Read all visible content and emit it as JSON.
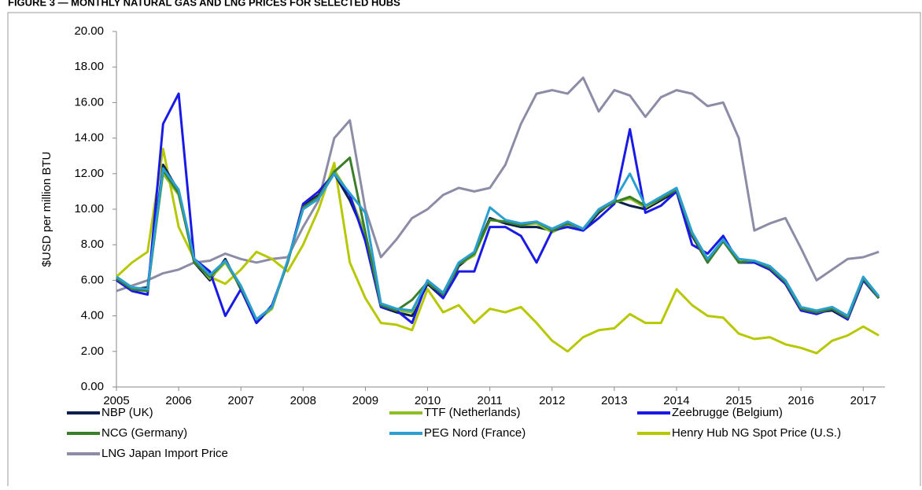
{
  "chart_data": {
    "type": "line",
    "title": "FIGURE 3 — MONTHLY NATURAL GAS AND LNG PRICES FOR SELECTED HUBS",
    "y_label": "$USD per million BTU",
    "xlim": [
      2005,
      2017.35
    ],
    "xticks": [
      2005,
      2006,
      2007,
      2008,
      2009,
      2010,
      2011,
      2012,
      2013,
      2014,
      2015,
      2016,
      2017
    ],
    "ylim": [
      0,
      20
    ],
    "yticks": [
      {
        "value": 0,
        "label": "0.00"
      },
      {
        "value": 2,
        "label": "2.00"
      },
      {
        "value": 4,
        "label": "4.00"
      },
      {
        "value": 6,
        "label": "6.00"
      },
      {
        "value": 8,
        "label": "8.00"
      },
      {
        "value": 10,
        "label": "10.00"
      },
      {
        "value": 12,
        "label": "12.00"
      },
      {
        "value": 14,
        "label": "14.00"
      },
      {
        "value": 16,
        "label": "16.00"
      },
      {
        "value": 18,
        "label": "18.00"
      },
      {
        "value": 20,
        "label": "20.00"
      }
    ],
    "x": [
      2005,
      2005.25,
      2005.5,
      2005.75,
      2006,
      2006.25,
      2006.5,
      2006.75,
      2007,
      2007.25,
      2007.5,
      2007.75,
      2008,
      2008.25,
      2008.5,
      2008.75,
      2009,
      2009.25,
      2009.5,
      2009.75,
      2010,
      2010.25,
      2010.5,
      2010.75,
      2011,
      2011.25,
      2011.5,
      2011.75,
      2012,
      2012.25,
      2012.5,
      2012.75,
      2013,
      2013.25,
      2013.5,
      2013.75,
      2014,
      2014.25,
      2014.5,
      2014.75,
      2015,
      2015.25,
      2015.5,
      2015.75,
      2016,
      2016.25,
      2016.5,
      2016.75,
      2017,
      2017.25
    ],
    "legend": "bottom",
    "series": [
      {
        "name": "NBP (UK)",
        "color": "#0b1f4d",
        "values": [
          6.1,
          5.5,
          5.6,
          12.5,
          11.0,
          7.0,
          6.0,
          7.2,
          5.5,
          3.6,
          4.5,
          7.0,
          10.2,
          10.8,
          12.0,
          10.5,
          8.5,
          4.5,
          4.2,
          4.0,
          5.8,
          5.0,
          6.8,
          7.5,
          9.5,
          9.2,
          9.0,
          9.0,
          8.8,
          9.2,
          8.8,
          9.8,
          10.5,
          10.2,
          10.0,
          10.5,
          11.0,
          8.5,
          7.0,
          8.3,
          7.0,
          7.0,
          6.6,
          5.8,
          4.3,
          4.2,
          4.3,
          3.8,
          6.0,
          5.0
        ]
      },
      {
        "name": "TTF (Netherlands)",
        "color": "#8cbf26",
        "values": [
          6.2,
          5.6,
          5.5,
          12.0,
          10.8,
          7.1,
          6.1,
          7.0,
          5.6,
          3.7,
          4.4,
          7.1,
          10.0,
          10.6,
          12.2,
          10.8,
          8.6,
          4.6,
          4.3,
          4.2,
          5.9,
          5.1,
          6.9,
          7.4,
          9.4,
          9.3,
          9.1,
          9.2,
          8.7,
          9.1,
          8.9,
          9.9,
          10.4,
          10.6,
          10.1,
          10.6,
          11.1,
          8.6,
          7.1,
          8.2,
          7.1,
          7.0,
          6.7,
          5.9,
          4.4,
          4.2,
          4.4,
          3.9,
          6.1,
          5.0
        ]
      },
      {
        "name": "Zeebrugge (Belgium)",
        "color": "#1a1ae6",
        "values": [
          6.0,
          5.4,
          5.2,
          14.8,
          16.5,
          7.2,
          6.5,
          4.0,
          5.5,
          3.6,
          4.6,
          7.0,
          10.3,
          11.0,
          12.0,
          10.8,
          8.2,
          4.5,
          4.3,
          3.6,
          6.0,
          5.0,
          6.5,
          6.5,
          9.0,
          9.0,
          8.5,
          7.0,
          8.8,
          9.0,
          8.8,
          9.5,
          10.3,
          14.5,
          9.8,
          10.2,
          11.0,
          8.0,
          7.5,
          8.5,
          7.0,
          7.0,
          6.6,
          5.8,
          4.3,
          4.1,
          4.4,
          3.8,
          6.0,
          5.0
        ]
      },
      {
        "name": "NCG (Germany)",
        "color": "#3a7d2a",
        "values": [
          6.1,
          5.5,
          5.4,
          12.2,
          10.9,
          7.0,
          6.2,
          7.1,
          5.6,
          3.8,
          4.5,
          7.0,
          10.1,
          10.7,
          12.1,
          12.9,
          8.7,
          4.6,
          4.3,
          4.9,
          5.9,
          5.2,
          6.9,
          7.5,
          9.4,
          9.3,
          9.1,
          9.3,
          8.8,
          9.2,
          8.9,
          9.9,
          10.4,
          10.7,
          10.2,
          10.6,
          11.1,
          8.6,
          7.0,
          8.2,
          7.0,
          7.1,
          6.7,
          5.9,
          4.4,
          4.2,
          4.4,
          3.9,
          6.1,
          5.0
        ]
      },
      {
        "name": "PEG Nord (France)",
        "color": "#2a9fd0",
        "values": [
          6.2,
          5.6,
          5.5,
          12.3,
          11.1,
          7.2,
          6.3,
          7.1,
          5.7,
          3.8,
          4.5,
          7.1,
          10.0,
          10.6,
          12.0,
          10.9,
          9.8,
          4.7,
          4.4,
          4.3,
          6.0,
          5.3,
          7.0,
          7.6,
          10.1,
          9.4,
          9.2,
          9.3,
          8.9,
          9.3,
          8.9,
          10.0,
          10.5,
          12.0,
          10.2,
          10.7,
          11.2,
          8.7,
          7.2,
          8.3,
          7.2,
          7.1,
          6.8,
          6.0,
          4.5,
          4.3,
          4.5,
          4.0,
          6.2,
          5.1
        ]
      },
      {
        "name": "Henry Hub NG Spot Price (U.S.)",
        "color": "#b7c800",
        "values": [
          6.2,
          7.0,
          7.6,
          13.4,
          9.0,
          7.2,
          6.2,
          5.8,
          6.6,
          7.6,
          7.2,
          6.5,
          8.0,
          10.0,
          12.6,
          7.0,
          5.0,
          3.6,
          3.5,
          3.2,
          5.5,
          4.2,
          4.6,
          3.6,
          4.4,
          4.2,
          4.5,
          3.6,
          2.6,
          2.0,
          2.8,
          3.2,
          3.3,
          4.1,
          3.6,
          3.6,
          5.5,
          4.6,
          4.0,
          3.9,
          3.0,
          2.7,
          2.8,
          2.4,
          2.2,
          1.9,
          2.6,
          2.9,
          3.4,
          2.9
        ]
      },
      {
        "name": "LNG Japan Import Price",
        "color": "#8c8ca6",
        "values": [
          5.4,
          5.7,
          6.0,
          6.4,
          6.6,
          7.0,
          7.1,
          7.5,
          7.2,
          7.0,
          7.2,
          7.3,
          9.0,
          10.5,
          14.0,
          15.0,
          10.0,
          7.3,
          8.3,
          9.5,
          10.0,
          10.8,
          11.2,
          11.0,
          11.2,
          12.5,
          14.8,
          16.5,
          16.7,
          16.5,
          17.4,
          15.5,
          16.7,
          16.4,
          15.2,
          16.3,
          16.7,
          16.5,
          15.8,
          16.0,
          14.0,
          8.8,
          9.2,
          9.5,
          7.8,
          6.0,
          6.6,
          7.2,
          7.3,
          7.6
        ]
      }
    ]
  }
}
